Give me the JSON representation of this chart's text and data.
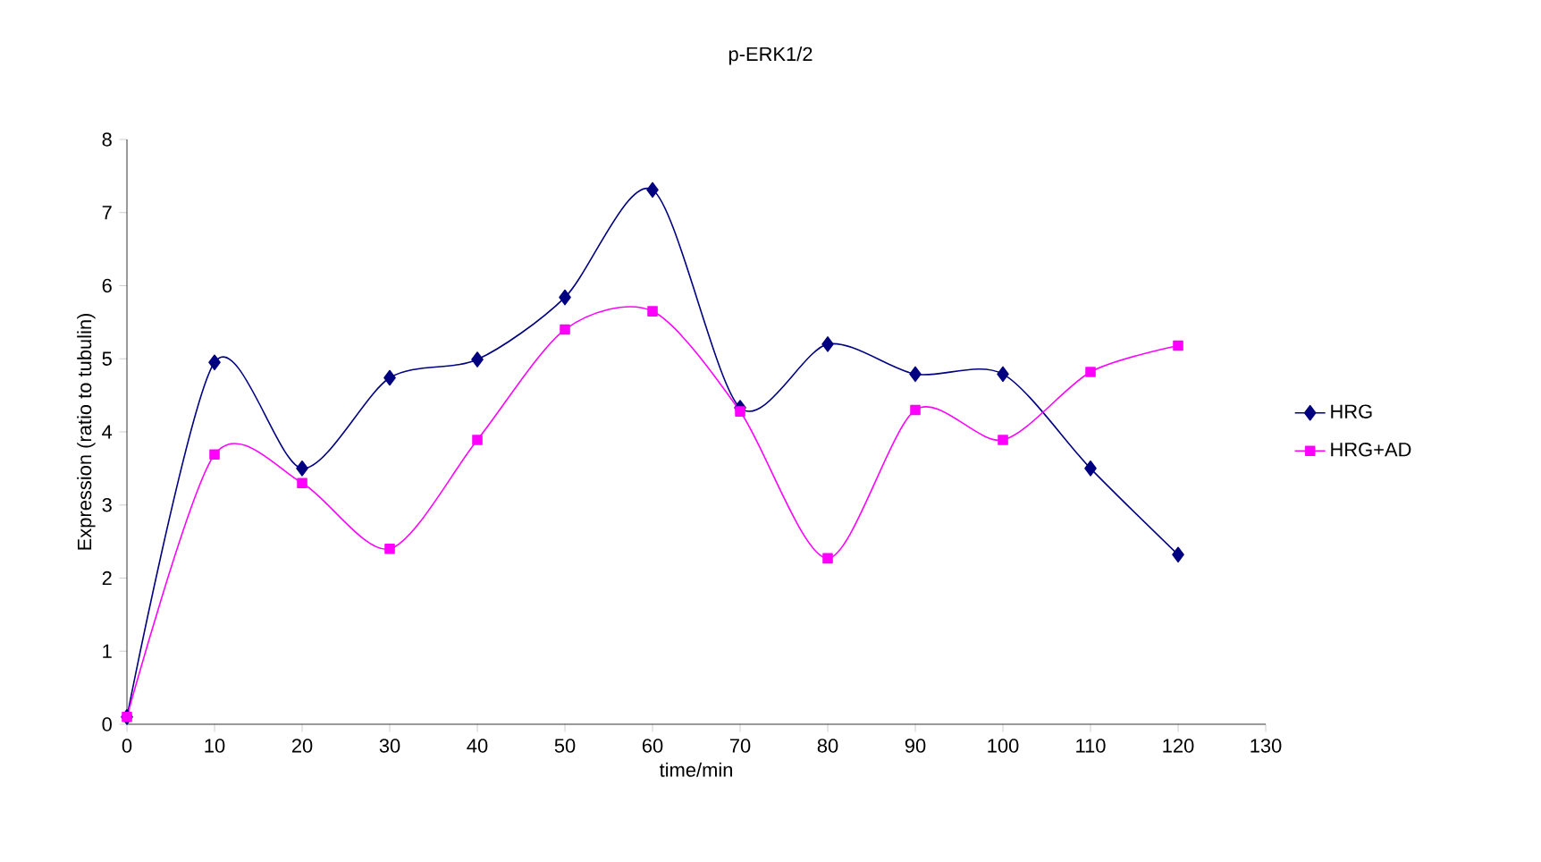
{
  "chart_data": {
    "type": "line",
    "title": "p-ERK1/2",
    "xlabel": "time/min",
    "ylabel": "Expression (ratio to tubulin)",
    "x": [
      0,
      10,
      20,
      30,
      40,
      50,
      60,
      70,
      80,
      90,
      100,
      110,
      120
    ],
    "series": [
      {
        "name": "HRG",
        "color": "#000080",
        "marker": "diamond",
        "values": [
          0.1,
          4.95,
          3.5,
          4.74,
          4.99,
          5.84,
          7.31,
          4.33,
          5.2,
          4.79,
          4.79,
          3.5,
          2.32
        ]
      },
      {
        "name": "HRG+AD",
        "color": "#ff00ff",
        "marker": "square",
        "values": [
          0.1,
          3.69,
          3.3,
          2.4,
          3.89,
          5.4,
          5.65,
          4.28,
          2.27,
          4.3,
          3.89,
          4.82,
          5.18
        ]
      }
    ],
    "xlim": [
      0,
      130
    ],
    "ylim": [
      0,
      8
    ],
    "xticks": [
      0,
      10,
      20,
      30,
      40,
      50,
      60,
      70,
      80,
      90,
      100,
      110,
      120,
      130
    ],
    "yticks": [
      0,
      1,
      2,
      3,
      4,
      5,
      6,
      7,
      8
    ],
    "legend": "right",
    "grid": false,
    "line_style": "solid"
  }
}
